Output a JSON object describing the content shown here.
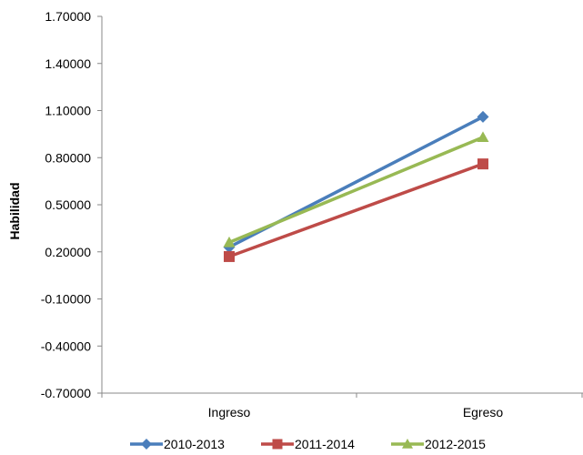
{
  "chart_data": {
    "type": "line",
    "categories": [
      "Ingreso",
      "Egreso"
    ],
    "series": [
      {
        "name": "2010-2013",
        "values": [
          0.23,
          1.06
        ],
        "color": "#4A7EBB",
        "marker": "diamond"
      },
      {
        "name": "2011-2014",
        "values": [
          0.17,
          0.76
        ],
        "color": "#BE4B48",
        "marker": "square"
      },
      {
        "name": "2012-2015",
        "values": [
          0.26,
          0.93
        ],
        "color": "#98B954",
        "marker": "triangle"
      }
    ],
    "xlabel": "",
    "ylabel": "Habilidad",
    "ylim": [
      -0.7,
      1.7
    ],
    "yticks": [
      -0.7,
      -0.4,
      -0.1,
      0.2,
      0.5,
      0.8,
      1.1,
      1.4,
      1.7
    ],
    "ytick_labels": [
      "-0.70000",
      "-0.40000",
      "-0.10000",
      "0.20000",
      "0.50000",
      "0.80000",
      "1.10000",
      "1.40000",
      "1.70000"
    ],
    "grid": false,
    "legend_position": "bottom"
  }
}
